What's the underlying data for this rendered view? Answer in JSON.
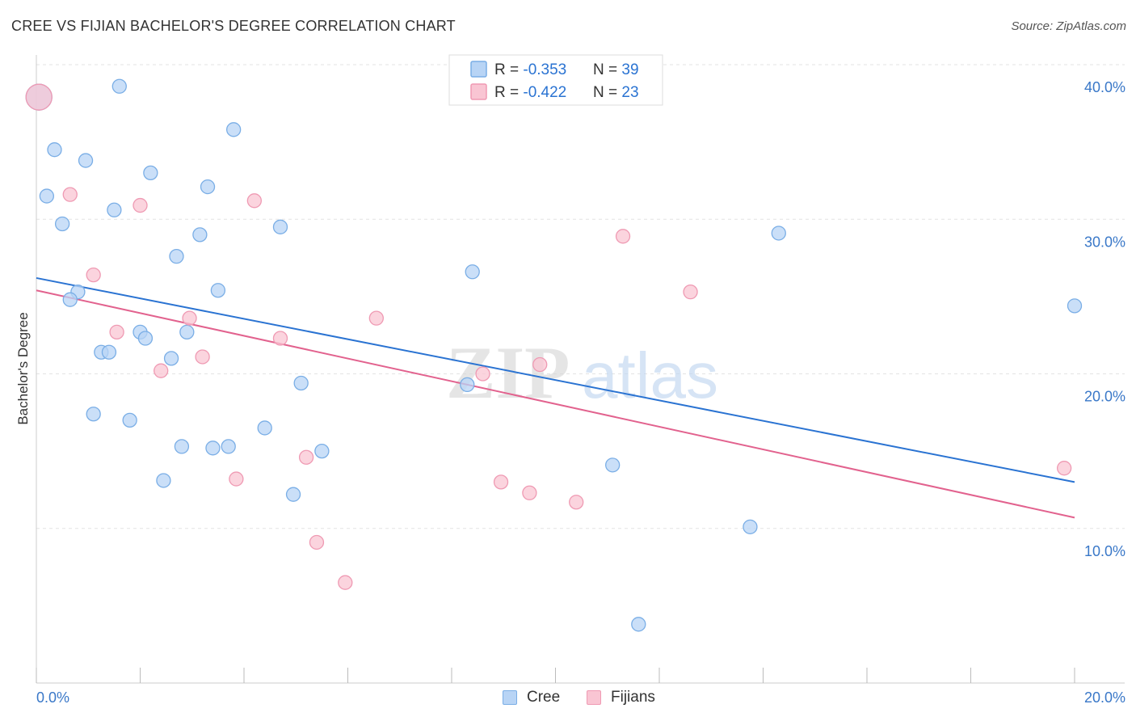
{
  "title": "CREE VS FIJIAN BACHELOR'S DEGREE CORRELATION CHART",
  "source": "Source: ZipAtlas.com",
  "watermark": {
    "zip": "ZIP",
    "atlas": "atlas"
  },
  "colors": {
    "cree_fill": "#b8d4f5",
    "cree_stroke": "#7aaee6",
    "cree_line": "#2a73d2",
    "fijian_fill": "#f9c5d3",
    "fijian_stroke": "#ef9ab3",
    "fijian_line": "#e2628e",
    "axis_label": "#3a78c8",
    "grid": "#e3e3e3"
  },
  "legend_top": [
    {
      "r_label": "R = ",
      "r_value": "-0.353",
      "n_label": "N = ",
      "n_value": "39"
    },
    {
      "r_label": "R = ",
      "r_value": "-0.422",
      "n_label": "N = ",
      "n_value": "23"
    }
  ],
  "chart_data": {
    "type": "scatter",
    "title": "CREE VS FIJIAN BACHELOR'S DEGREE CORRELATION CHART",
    "ylabel": "Bachelor's Degree",
    "xlabel": "",
    "xlim": [
      0,
      20
    ],
    "ylim": [
      0,
      40
    ],
    "x_tick_labels": [
      "0.0%",
      "20.0%"
    ],
    "y_ticks": [
      10,
      20,
      30,
      40
    ],
    "y_tick_labels": [
      "10.0%",
      "20.0%",
      "30.0%",
      "40.0%"
    ],
    "grid": true,
    "legend_position": "top-center",
    "series": [
      {
        "name": "Cree",
        "points": [
          [
            0.05,
            37.9
          ],
          [
            1.6,
            38.6
          ],
          [
            3.8,
            35.8
          ],
          [
            0.35,
            34.5
          ],
          [
            0.95,
            33.8
          ],
          [
            2.2,
            33.0
          ],
          [
            0.2,
            31.5
          ],
          [
            3.3,
            32.1
          ],
          [
            1.5,
            30.6
          ],
          [
            0.5,
            29.7
          ],
          [
            4.7,
            29.5
          ],
          [
            3.15,
            29.0
          ],
          [
            14.3,
            29.1
          ],
          [
            2.7,
            27.6
          ],
          [
            8.4,
            26.6
          ],
          [
            3.5,
            25.4
          ],
          [
            0.8,
            25.3
          ],
          [
            0.65,
            24.8
          ],
          [
            20.0,
            24.4
          ],
          [
            2.0,
            22.7
          ],
          [
            2.9,
            22.7
          ],
          [
            2.1,
            22.3
          ],
          [
            1.25,
            21.4
          ],
          [
            1.4,
            21.4
          ],
          [
            2.6,
            21.0
          ],
          [
            5.1,
            19.4
          ],
          [
            8.3,
            19.3
          ],
          [
            1.1,
            17.4
          ],
          [
            1.8,
            17.0
          ],
          [
            4.4,
            16.5
          ],
          [
            2.8,
            15.3
          ],
          [
            3.4,
            15.2
          ],
          [
            3.7,
            15.3
          ],
          [
            5.5,
            15.0
          ],
          [
            11.1,
            14.1
          ],
          [
            2.45,
            13.1
          ],
          [
            4.95,
            12.2
          ],
          [
            13.75,
            10.1
          ],
          [
            11.6,
            3.8
          ]
        ],
        "trend": {
          "x": [
            0,
            20
          ],
          "y": [
            26.2,
            13.0
          ]
        }
      },
      {
        "name": "Fijians",
        "points": [
          [
            0.05,
            37.9
          ],
          [
            0.65,
            31.6
          ],
          [
            2.0,
            30.9
          ],
          [
            4.2,
            31.2
          ],
          [
            11.3,
            28.9
          ],
          [
            1.1,
            26.4
          ],
          [
            12.6,
            25.3
          ],
          [
            6.55,
            23.6
          ],
          [
            2.95,
            23.6
          ],
          [
            1.55,
            22.7
          ],
          [
            4.7,
            22.3
          ],
          [
            3.2,
            21.1
          ],
          [
            9.7,
            20.6
          ],
          [
            2.4,
            20.2
          ],
          [
            8.6,
            20.0
          ],
          [
            5.2,
            14.6
          ],
          [
            19.8,
            13.9
          ],
          [
            3.85,
            13.2
          ],
          [
            8.95,
            13.0
          ],
          [
            9.5,
            12.3
          ],
          [
            10.4,
            11.7
          ],
          [
            5.4,
            9.1
          ],
          [
            5.95,
            6.5
          ]
        ],
        "trend": {
          "x": [
            0,
            20
          ],
          "y": [
            25.4,
            10.7
          ]
        }
      }
    ]
  }
}
